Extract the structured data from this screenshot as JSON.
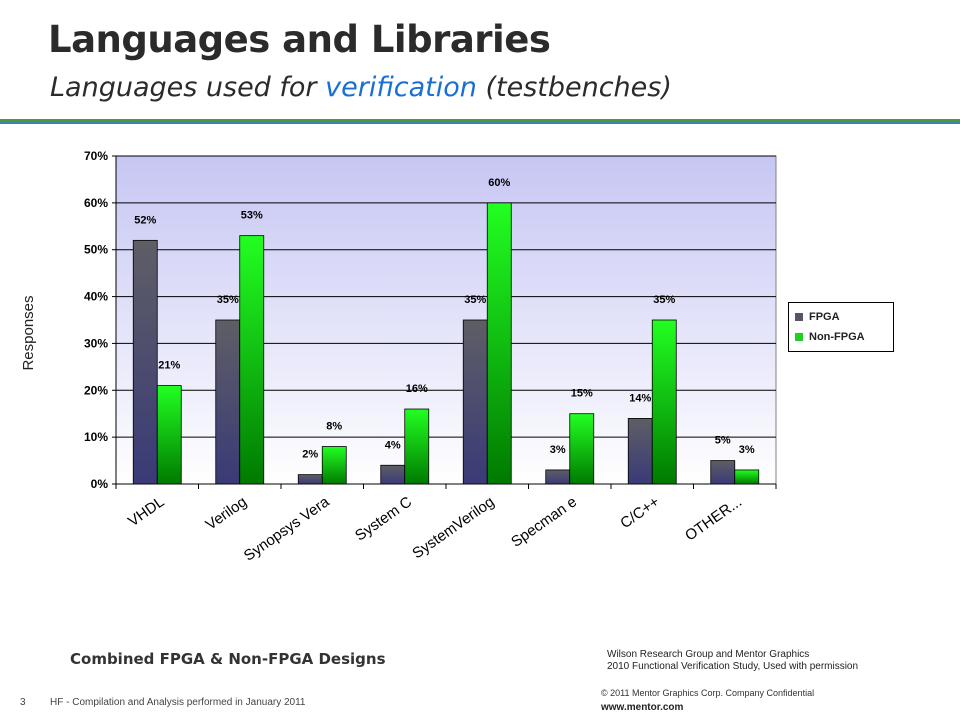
{
  "slide": {
    "title": "Languages and Libraries",
    "subtitle_pre": "Languages used for ",
    "subtitle_highlight": "verification",
    "subtitle_post": " (testbenches)",
    "caption": "Combined FPGA & Non-FPGA Designs",
    "source_line1": "Wilson Research Group and Mentor Graphics",
    "source_line2": "2010 Functional Verification Study,  Used with permission",
    "page_number": "3",
    "footnote": "HF - Compilation and Analysis performed in January 2011",
    "copyright": "© 2011 Mentor Graphics Corp. Company Confidential",
    "website": "www.mentor.com"
  },
  "colors": {
    "accent_green": "#4a9a3a",
    "accent_blue": "#3a86b0",
    "highlight_text": "#1a6fd4",
    "fpga": "#555566",
    "non_fpga": "#22cc22"
  },
  "chart_data": {
    "type": "bar",
    "title": "",
    "ylabel": "Responses",
    "xlabel": "",
    "ylim": [
      0,
      70
    ],
    "yticks": [
      "0%",
      "10%",
      "20%",
      "30%",
      "40%",
      "50%",
      "60%",
      "70%"
    ],
    "categories": [
      "VHDL",
      "Verilog",
      "Synopsys Vera",
      "System C",
      "SystemVerilog",
      "Specman e",
      "C/C++",
      "OTHER..."
    ],
    "series": [
      {
        "name": "FPGA",
        "values": [
          52,
          35,
          2,
          4,
          35,
          3,
          14,
          5
        ],
        "labels": [
          "52%",
          "35%",
          "2%",
          "4%",
          "35%",
          "3%",
          "14%",
          "5%"
        ]
      },
      {
        "name": "Non-FPGA",
        "values": [
          21,
          53,
          8,
          16,
          60,
          15,
          35,
          3
        ],
        "labels": [
          "21%",
          "53%",
          "8%",
          "16%",
          "60%",
          "15%",
          "35%",
          "3%"
        ]
      }
    ],
    "legend_position": "right",
    "grid": true
  }
}
